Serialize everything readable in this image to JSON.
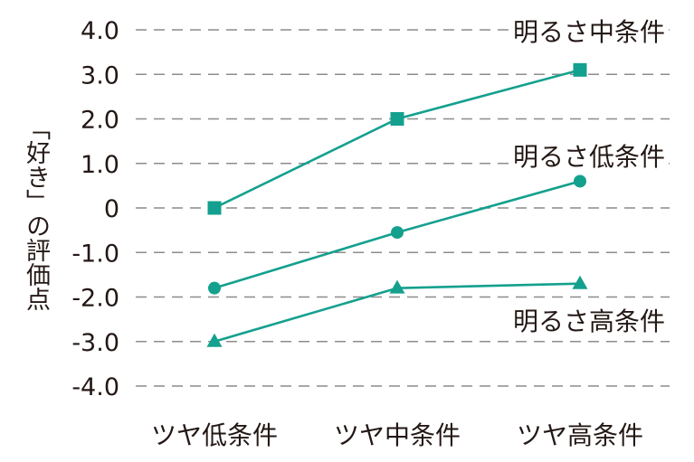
{
  "chart_data": {
    "type": "line",
    "title": "",
    "xlabel": "",
    "ylabel": "「好き」の評価点",
    "categories": [
      "ツヤ低条件",
      "ツヤ中条件",
      "ツヤ高条件"
    ],
    "yticks": [
      "4.0",
      "3.0",
      "2.0",
      "1.0",
      "0",
      "-1.0",
      "-2.0",
      "-3.0",
      "-4.0"
    ],
    "ytick_values": [
      4,
      3,
      2,
      1,
      0,
      -1,
      -2,
      -3,
      -4
    ],
    "ylim": [
      -4,
      4
    ],
    "grid": "horizontal dashed",
    "legend_position": "inline labels at right",
    "series": [
      {
        "name": "明るさ中条件",
        "marker": "square",
        "values": [
          0.0,
          2.0,
          3.1
        ],
        "label_y": 4.0
      },
      {
        "name": "明るさ低条件",
        "marker": "circle",
        "values": [
          -1.8,
          -0.55,
          0.6
        ],
        "label_y": 1.2
      },
      {
        "name": "明るさ高条件",
        "marker": "triangle",
        "values": [
          -3.0,
          -1.8,
          -1.7
        ],
        "label_y": -2.5
      }
    ],
    "colors": {
      "line": "#14a08e",
      "grid": "#8c8c8c",
      "text": "#231815"
    }
  }
}
